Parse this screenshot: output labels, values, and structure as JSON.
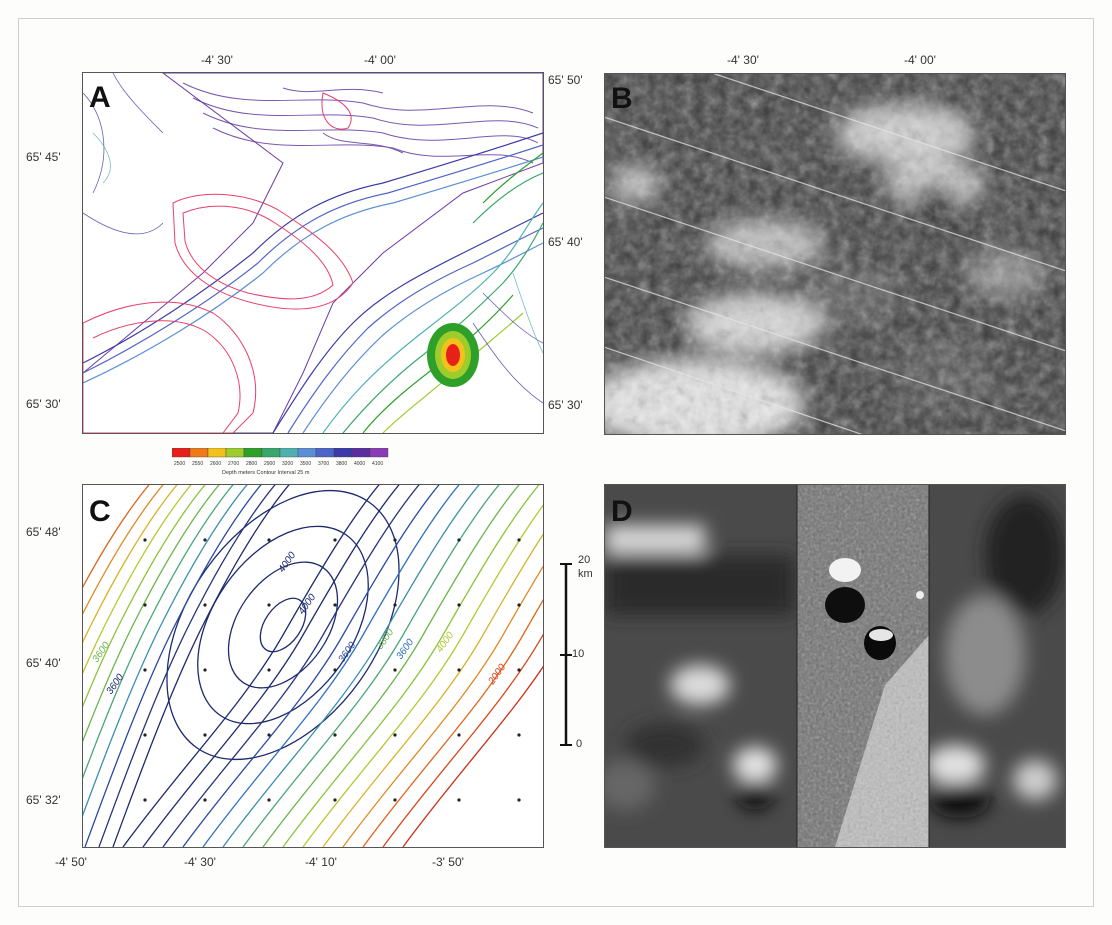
{
  "panelA": {
    "letter": "A",
    "top_ticks": [
      "-4' 30'",
      "-4' 00'"
    ],
    "left_ticks": [
      "65' 45'",
      "65' 30'"
    ],
    "colorbar_values": [
      "2500",
      "2550",
      "2600",
      "2700",
      "2800",
      "2900",
      "3200",
      "3500",
      "3700",
      "3800",
      "4000",
      "4100"
    ],
    "colorbar_caption": "Depth meters   Contour Interval 25 m",
    "colorbar_colors": [
      "#e8201a",
      "#f07a18",
      "#f2c21a",
      "#9ccd2c",
      "#2ea02a",
      "#39a86a",
      "#4fb0b0",
      "#5a8fd6",
      "#4f64c8",
      "#3b3aa8",
      "#5b2d9e",
      "#8a3cb4"
    ]
  },
  "panelB": {
    "letter": "B",
    "top_ticks": [
      "-4' 30'",
      "-4' 00'"
    ],
    "left_ticks": [
      "65' 50'",
      "65' 40'",
      "65' 30'"
    ]
  },
  "panelC": {
    "letter": "C",
    "left_ticks": [
      "65' 48'",
      "65' 40'",
      "65' 32'"
    ],
    "bottom_ticks": [
      "-4' 50'",
      "-4' 30'",
      "-4' 10'",
      "-3' 50'"
    ],
    "contour_labels": [
      "4000",
      "4000",
      "3600",
      "3600",
      "3600",
      "3800",
      "3600",
      "4000",
      "2000"
    ]
  },
  "scalebar": {
    "unit": "km",
    "labels": [
      "20",
      "10",
      "0"
    ]
  },
  "panelD": {
    "letter": "D"
  }
}
